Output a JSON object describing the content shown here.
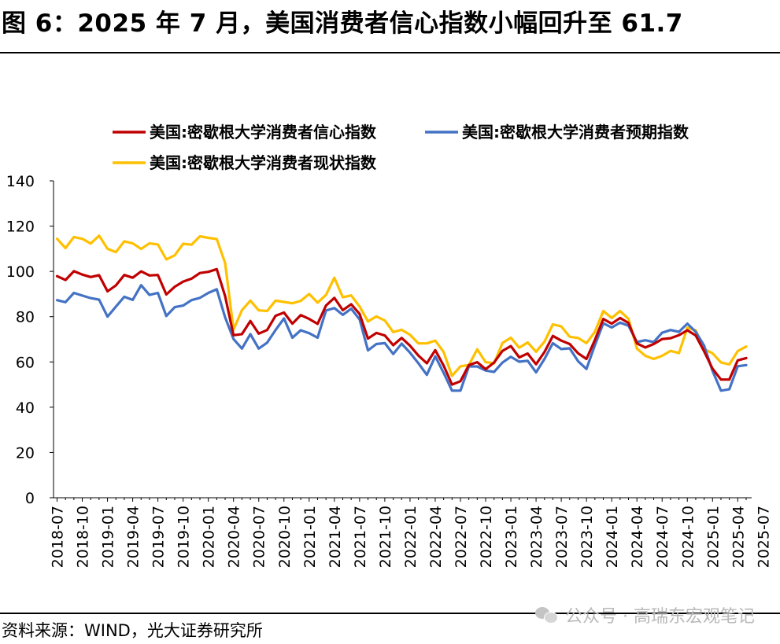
{
  "page": {
    "title": "图 6：2025 年 7 月，美国消费者信心指数小幅回升至 61.7",
    "source": "资料来源：WIND，光大证券研究所",
    "watermark": "公众号 · 高瑞东宏观笔记",
    "watermark_icon": "wechat-icon"
  },
  "chart_data": {
    "type": "line",
    "ylim": [
      0,
      140
    ],
    "yticks": [
      0,
      20,
      40,
      60,
      80,
      100,
      120,
      140
    ],
    "grid": false,
    "legend_position": "top",
    "x_start": "2018-07",
    "xtick_labels": [
      "2018-07",
      "2018-10",
      "2019-01",
      "2019-04",
      "2019-07",
      "2019-10",
      "2020-01",
      "2020-04",
      "2020-07",
      "2020-10",
      "2021-01",
      "2021-04",
      "2021-07",
      "2021-10",
      "2022-01",
      "2022-04",
      "2022-07",
      "2022-10",
      "2023-01",
      "2023-04",
      "2023-07",
      "2023-10",
      "2024-01",
      "2024-04",
      "2024-07",
      "2024-10",
      "2025-01",
      "2025-04",
      "2025-07"
    ],
    "series": [
      {
        "name": "美国:密歇根大学消费者信心指数",
        "color": "#c00000",
        "values": [
          97.9,
          96.2,
          100.1,
          98.6,
          97.5,
          98.3,
          91.2,
          93.8,
          98.4,
          97.2,
          100.0,
          98.2,
          98.4,
          89.8,
          93.2,
          95.5,
          96.8,
          99.3,
          99.8,
          101.0,
          89.1,
          71.8,
          72.3,
          78.1,
          72.5,
          74.1,
          80.4,
          81.8,
          76.9,
          80.7,
          79.0,
          76.8,
          84.9,
          88.3,
          82.9,
          85.5,
          81.2,
          70.3,
          72.8,
          71.7,
          67.4,
          70.6,
          67.2,
          62.8,
          59.4,
          65.2,
          58.4,
          50.0,
          51.5,
          58.6,
          59.9,
          56.8,
          59.7,
          64.9,
          67.0,
          62.0,
          63.7,
          59.0,
          64.4,
          71.5,
          69.4,
          67.9,
          63.8,
          61.3,
          69.7,
          79.0,
          76.9,
          79.4,
          77.2,
          68.2,
          66.4,
          67.9,
          70.1,
          70.5,
          71.8,
          74.0,
          71.7,
          64.7,
          57.0,
          52.2,
          52.2,
          60.7,
          61.7
        ]
      },
      {
        "name": "美国:密歇根大学消费者预期指数",
        "color": "#4472c4",
        "values": [
          87.3,
          86.4,
          90.5,
          89.3,
          88.2,
          87.5,
          80.0,
          84.4,
          88.8,
          87.4,
          93.9,
          89.6,
          90.5,
          80.3,
          84.2,
          84.9,
          87.3,
          88.3,
          90.5,
          92.1,
          79.7,
          70.1,
          65.9,
          72.3,
          65.9,
          68.5,
          74.1,
          79.2,
          70.7,
          74.0,
          72.7,
          70.7,
          82.7,
          83.8,
          80.8,
          83.5,
          78.8,
          65.1,
          67.9,
          68.3,
          63.5,
          68.1,
          64.1,
          59.4,
          54.3,
          62.5,
          55.2,
          47.3,
          47.3,
          58.0,
          58.0,
          56.2,
          55.6,
          59.7,
          62.3,
          60.1,
          60.5,
          55.4,
          61.3,
          68.3,
          65.7,
          66.0,
          60.3,
          56.9,
          67.4,
          77.1,
          75.2,
          77.4,
          76.0,
          68.8,
          69.6,
          68.8,
          72.9,
          74.1,
          73.3,
          76.9,
          73.3,
          67.2,
          56.0,
          47.3,
          47.9,
          58.1,
          58.6
        ]
      },
      {
        "name": "美国:密歇根大学消费者现状指数",
        "color": "#ffc000",
        "values": [
          114.4,
          110.3,
          115.2,
          114.4,
          112.3,
          115.8,
          110.0,
          108.5,
          113.3,
          112.4,
          109.9,
          112.4,
          111.9,
          105.3,
          107.1,
          112.2,
          111.8,
          115.5,
          114.8,
          114.3,
          103.7,
          74.3,
          82.9,
          87.1,
          82.8,
          82.5,
          87.1,
          86.5,
          85.9,
          87.0,
          90.0,
          86.2,
          89.6,
          97.2,
          88.6,
          89.4,
          84.5,
          77.9,
          80.1,
          78.3,
          73.2,
          74.2,
          72.0,
          68.2,
          68.2,
          69.4,
          64.4,
          53.8,
          58.1,
          58.6,
          65.6,
          59.9,
          59.4,
          68.4,
          70.7,
          66.3,
          68.6,
          64.5,
          69.0,
          76.6,
          75.7,
          71.1,
          70.6,
          68.3,
          73.3,
          82.5,
          79.4,
          82.5,
          79.0,
          65.9,
          62.7,
          61.3,
          62.7,
          64.9,
          63.9,
          75.1,
          74.0,
          65.7,
          63.8,
          59.8,
          58.9,
          64.8,
          66.8
        ]
      }
    ]
  }
}
